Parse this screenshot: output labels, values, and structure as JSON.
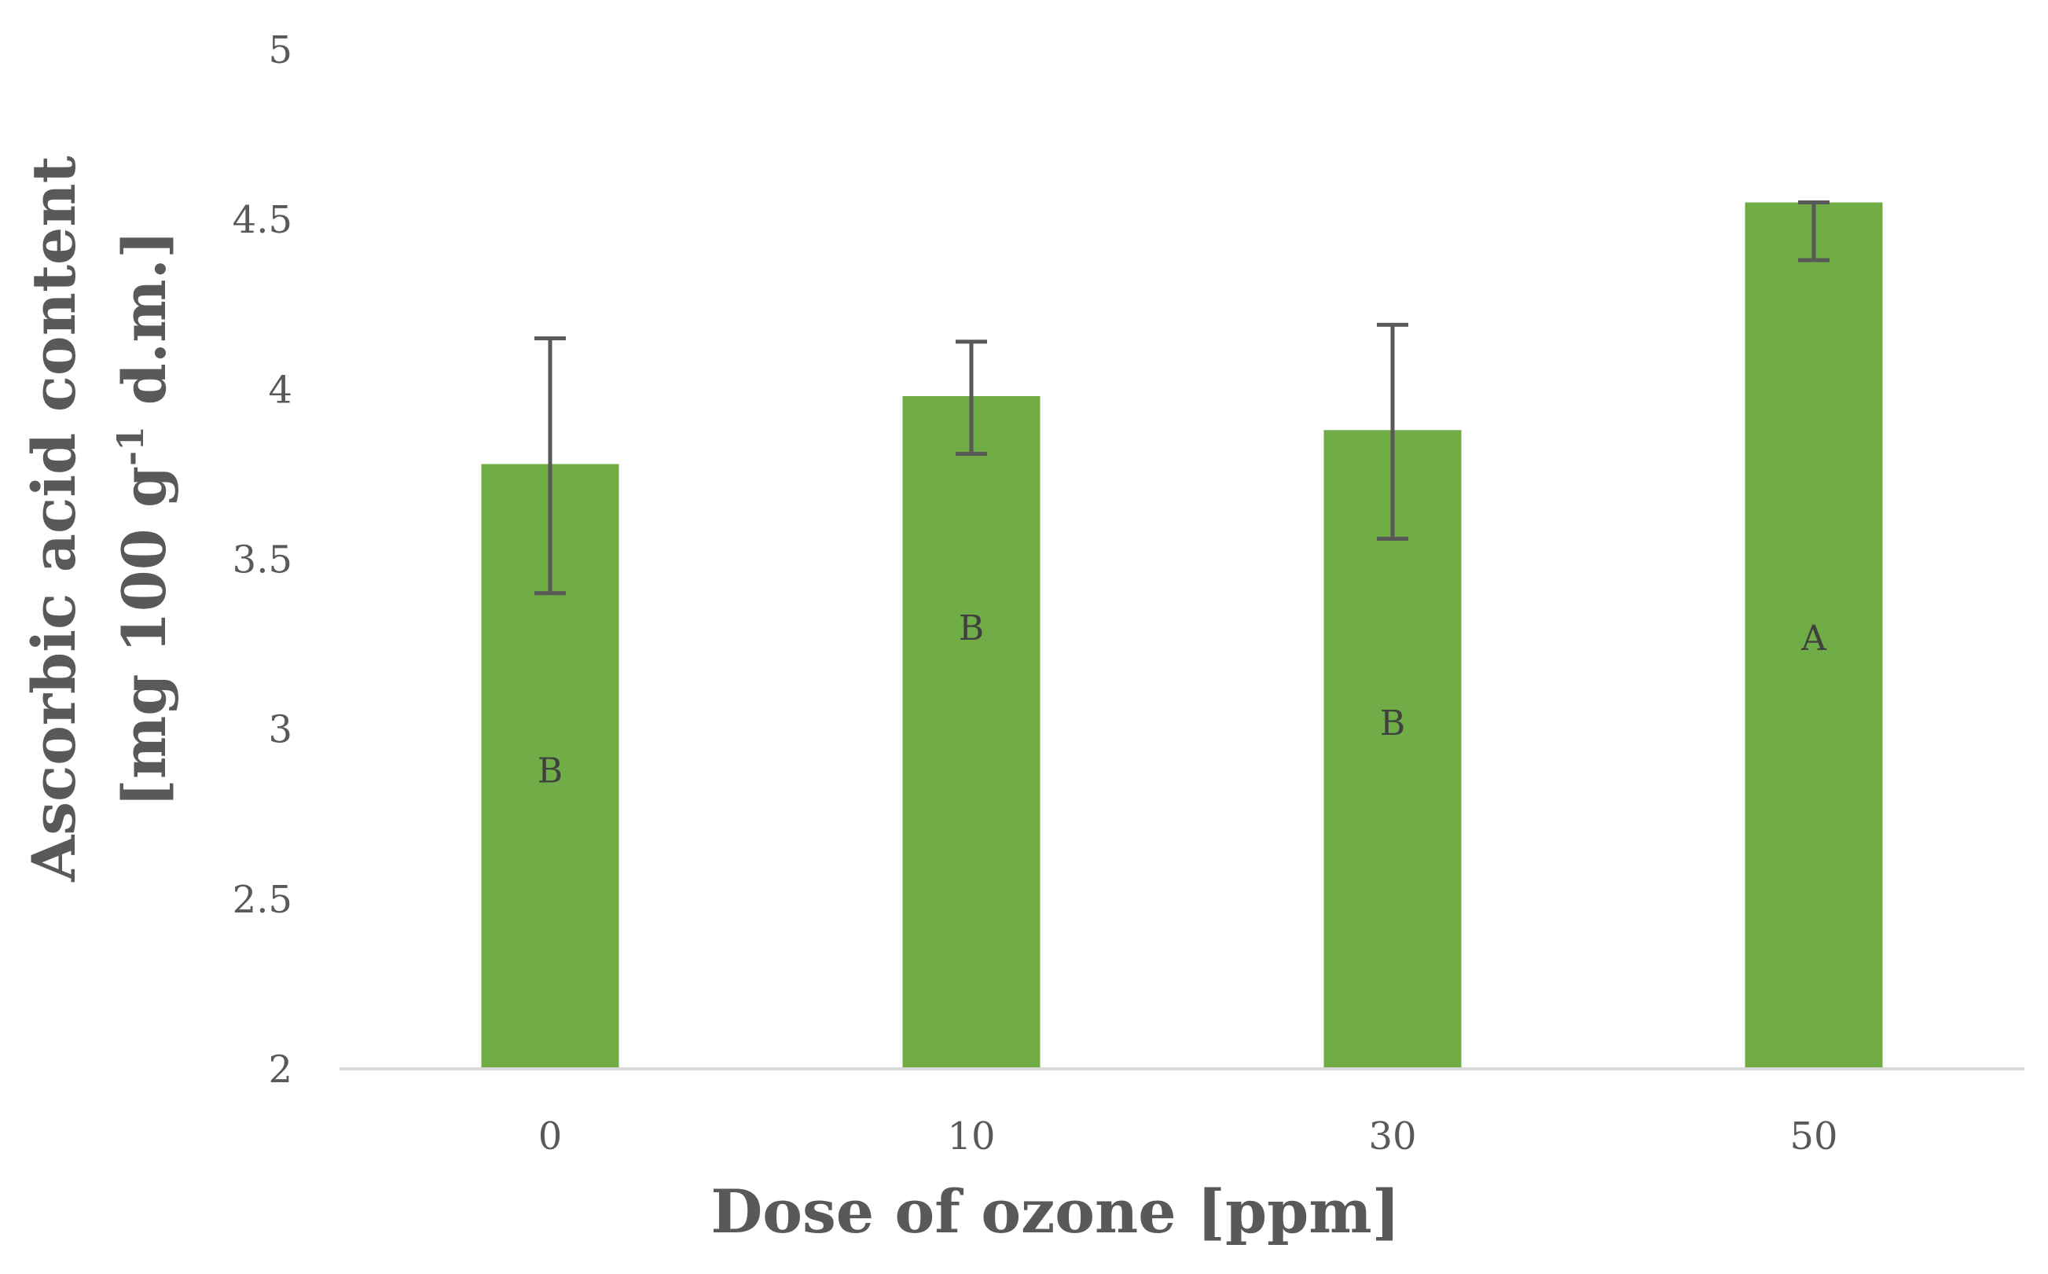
{
  "chart_data": {
    "type": "bar",
    "xlabel": "Dose of ozone [ppm]",
    "ylabel_line1": "Ascorbic acid content",
    "ylabel_line2_pre": "[mg 100 g",
    "ylabel_line2_sup": "-1",
    "ylabel_line2_post": " d.m.]",
    "categories": [
      "0",
      "10",
      "30",
      "50"
    ],
    "values": [
      3.78,
      3.98,
      3.88,
      4.55
    ],
    "error_high": [
      4.15,
      4.14,
      4.19,
      4.55
    ],
    "error_low": [
      3.4,
      3.81,
      3.56,
      4.38
    ],
    "group_letters": [
      "B",
      "B",
      "B",
      "A"
    ],
    "letter_values": [
      2.88,
      3.3,
      3.02,
      3.27
    ],
    "ylim": [
      2,
      5
    ],
    "yticks": [
      "2",
      "2.5",
      "3",
      "3.5",
      "4",
      "4.5",
      "5"
    ],
    "grid": false,
    "colors": {
      "bar": "#70ad47",
      "error_bar": "#595959",
      "axis": "#d9d9d9"
    }
  }
}
